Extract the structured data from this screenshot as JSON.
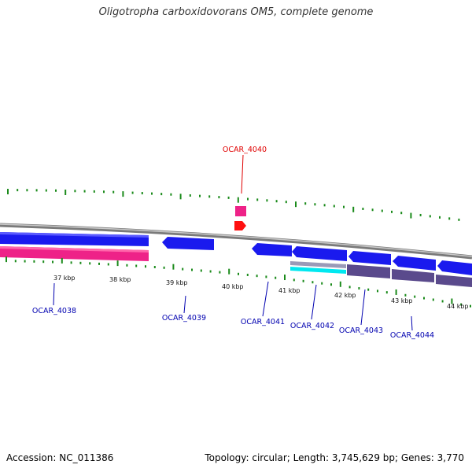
{
  "title": "Oligotropha carboxidovorans OM5, complete genome",
  "footer": {
    "accession": "Accession: NC_011386",
    "summary": "Topology: circular; Length: 3,745,629 bp; Genes: 3,770"
  },
  "scale_labels": [
    "37 kbp",
    "38 kbp",
    "39 kbp",
    "40 kbp",
    "41 kbp",
    "42 kbp",
    "43 kbp",
    "44 kbp"
  ],
  "gene_labels": [
    {
      "id": "OCAR_4040",
      "color": "#e00000"
    },
    {
      "id": "OCAR_4038",
      "color": "#0000b0"
    },
    {
      "id": "OCAR_4039",
      "color": "#0000b0"
    },
    {
      "id": "OCAR_4041",
      "color": "#0000b0"
    },
    {
      "id": "OCAR_4042",
      "color": "#0000b0"
    },
    {
      "id": "OCAR_4043",
      "color": "#0000b0"
    },
    {
      "id": "OCAR_4044",
      "color": "#0000b0"
    }
  ],
  "colors": {
    "cds_forward": "#1a1aee",
    "rna_track": "#ee2288",
    "tick": "#1a8a1a",
    "backbone": "#8a8a8a",
    "gene_dark": "#5a4a8c",
    "cyan_track": "#00e8f0",
    "red_feature": "#ff1010"
  }
}
